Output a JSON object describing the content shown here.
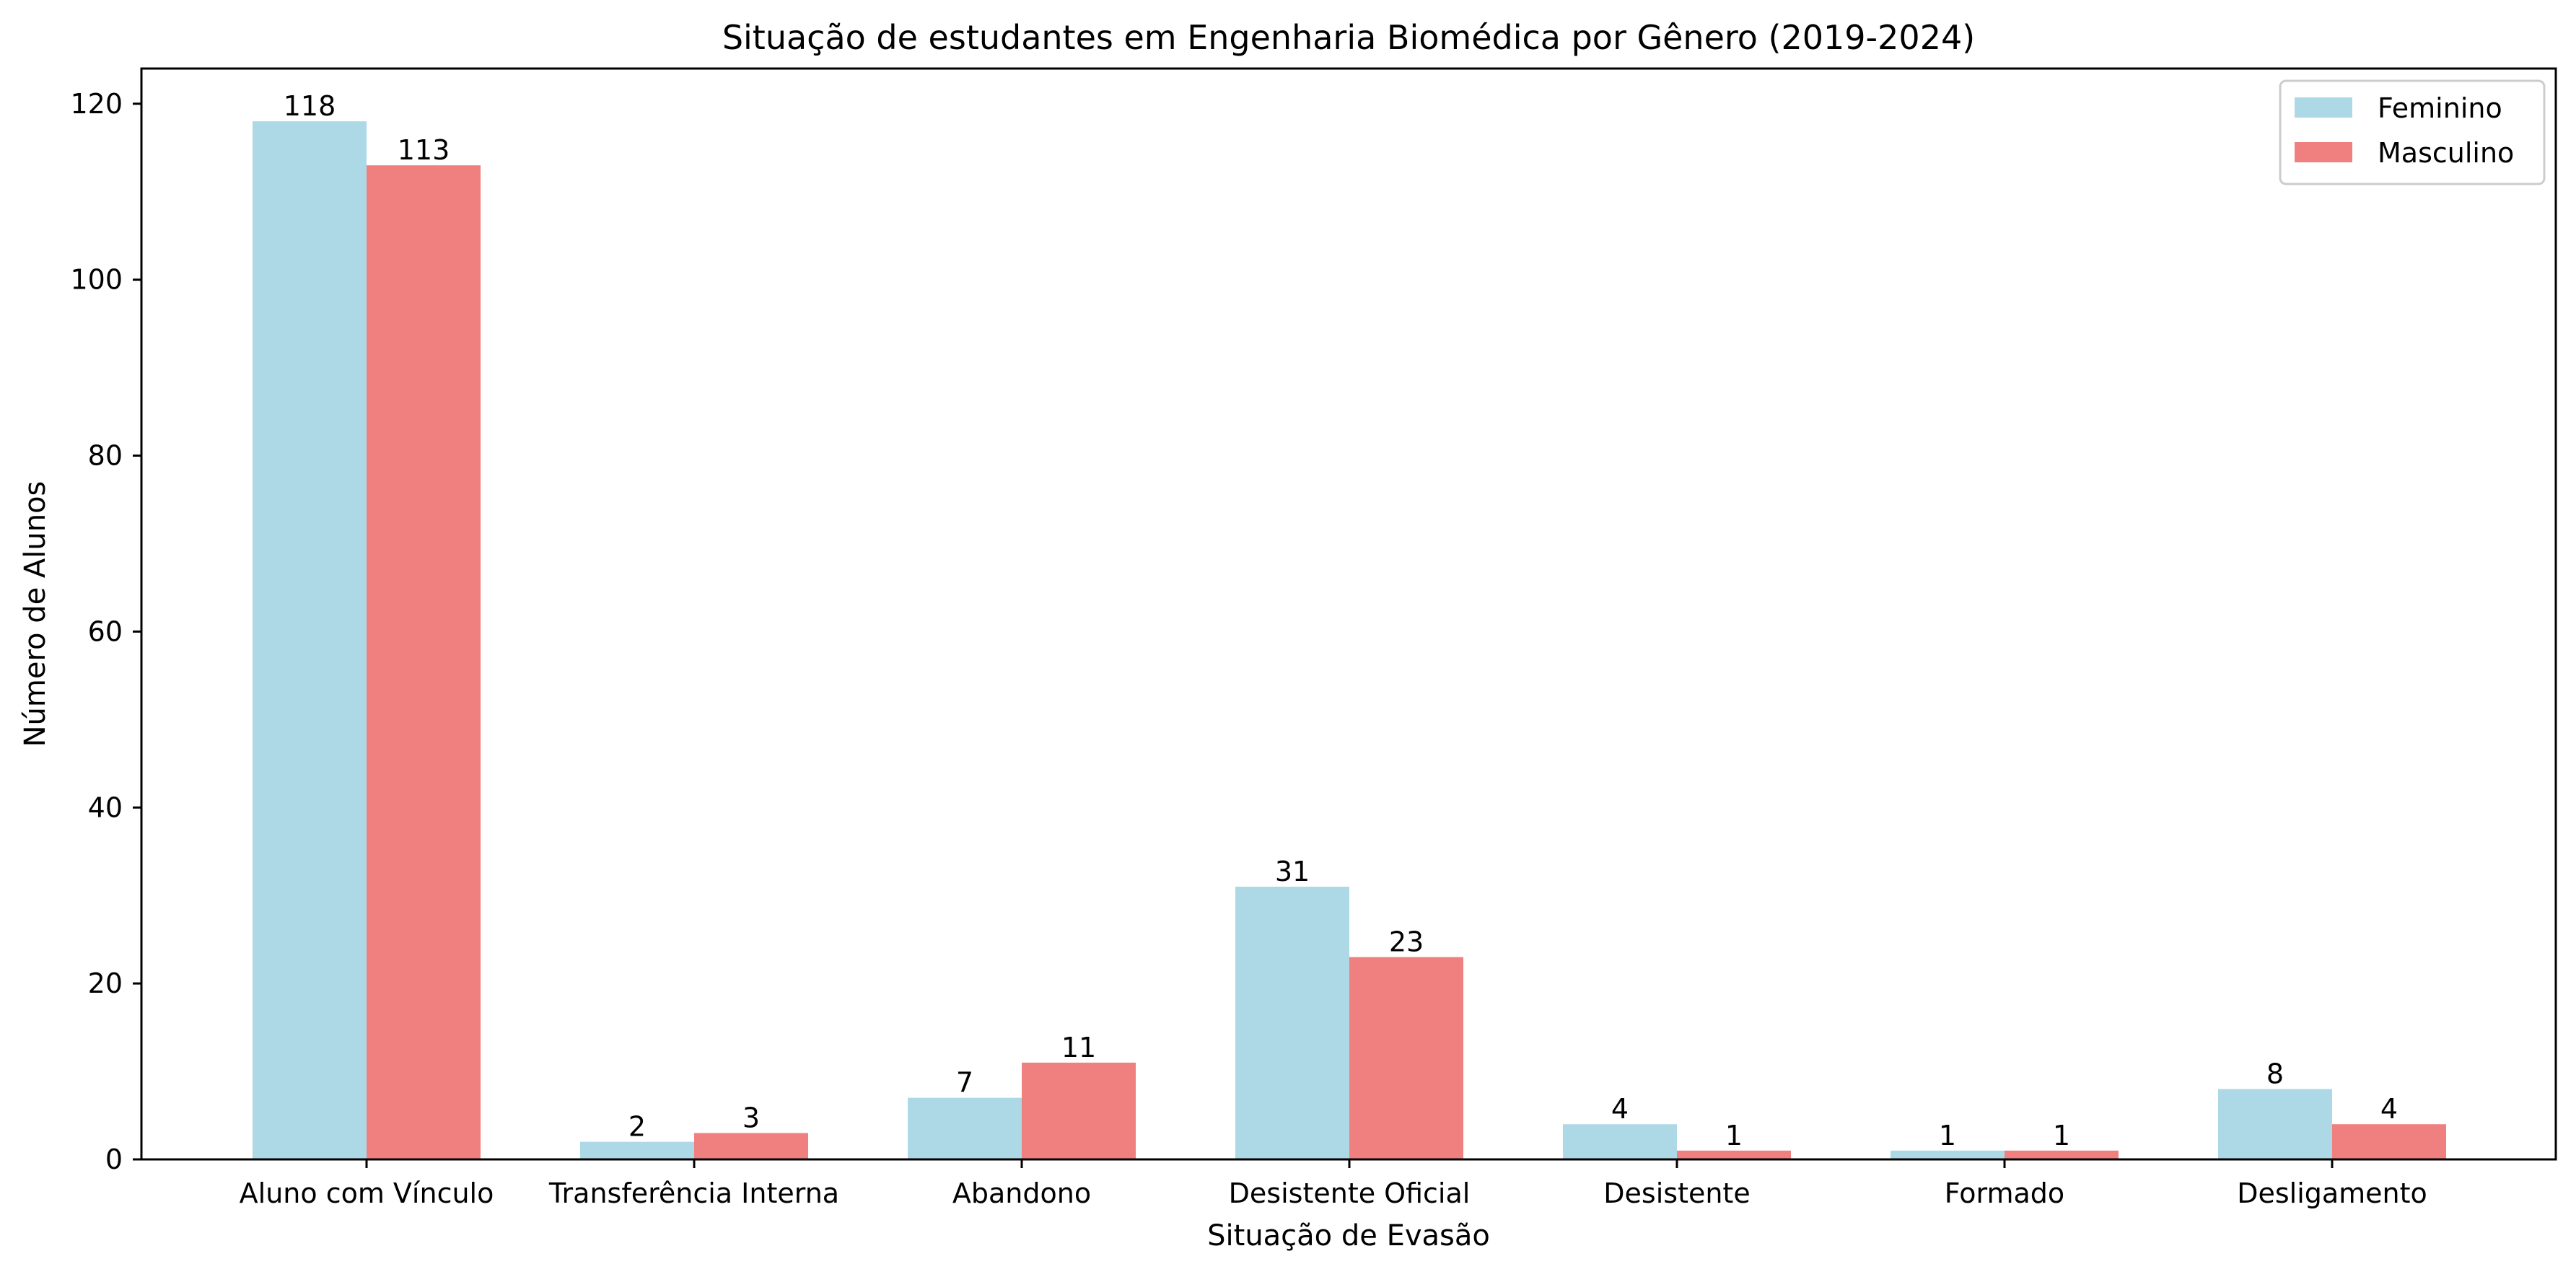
{
  "chart_data": {
    "type": "bar",
    "title": "Situação de estudantes em Engenharia Biomédica por Gênero (2019-2024)",
    "xlabel": "Situação de Evasão",
    "ylabel": "Número de Alunos",
    "categories": [
      "Aluno com Vínculo",
      "Transferência Interna",
      "Abandono",
      "Desistente Oficial",
      "Desistente",
      "Formado",
      "Desligamento"
    ],
    "series": [
      {
        "name": "Feminino",
        "color": "#add8e6",
        "values": [
          118,
          2,
          7,
          31,
          4,
          1,
          8
        ]
      },
      {
        "name": "Masculino",
        "color": "#f08080",
        "values": [
          113,
          3,
          11,
          23,
          1,
          1,
          4
        ]
      }
    ],
    "ylim": [
      0,
      124
    ],
    "yticks": [
      0,
      20,
      40,
      60,
      80,
      100,
      120
    ],
    "grid": false,
    "legend_position": "top-right"
  }
}
